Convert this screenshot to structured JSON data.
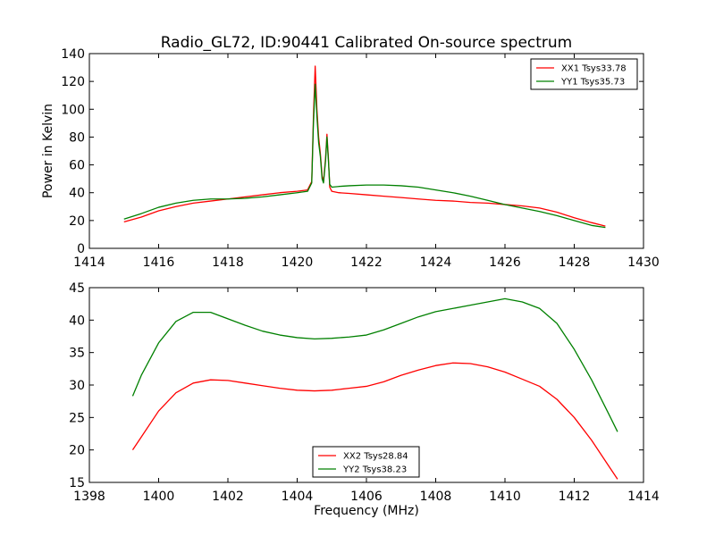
{
  "title": "Radio_GL72, ID:90441 Calibrated On-source spectrum",
  "colors": {
    "xx": "#ff0000",
    "yy": "#008000"
  },
  "chart_data": [
    {
      "type": "line",
      "xlabel": "",
      "ylabel": "Power in Kelvin",
      "xlim": [
        1414,
        1430
      ],
      "ylim": [
        0,
        140
      ],
      "xticks": [
        "1414",
        "1416",
        "1418",
        "1420",
        "1422",
        "1424",
        "1426",
        "1428",
        "1430"
      ],
      "yticks": [
        "0",
        "20",
        "40",
        "60",
        "80",
        "100",
        "120",
        "140"
      ],
      "grid": false,
      "legend": "upper right",
      "series": [
        {
          "name": "XX1 Tsys33.78",
          "color": "#ff0000",
          "points": [
            [
              1415.0,
              19
            ],
            [
              1415.5,
              22.5
            ],
            [
              1416.0,
              27
            ],
            [
              1416.5,
              30
            ],
            [
              1417.0,
              32.5
            ],
            [
              1417.5,
              34
            ],
            [
              1418.0,
              35.5
            ],
            [
              1418.5,
              37
            ],
            [
              1419.0,
              38.5
            ],
            [
              1419.5,
              40
            ],
            [
              1420.0,
              41
            ],
            [
              1420.3,
              42
            ],
            [
              1420.42,
              48
            ],
            [
              1420.47,
              95
            ],
            [
              1420.52,
              131
            ],
            [
              1420.57,
              100
            ],
            [
              1420.62,
              80
            ],
            [
              1420.67,
              68
            ],
            [
              1420.72,
              52
            ],
            [
              1420.76,
              48
            ],
            [
              1420.82,
              65
            ],
            [
              1420.86,
              82
            ],
            [
              1420.9,
              66
            ],
            [
              1420.94,
              44
            ],
            [
              1421.0,
              41
            ],
            [
              1421.2,
              40
            ],
            [
              1421.5,
              39.5
            ],
            [
              1422.0,
              38.5
            ],
            [
              1422.5,
              37.5
            ],
            [
              1423.0,
              36.5
            ],
            [
              1423.5,
              35.5
            ],
            [
              1424.0,
              34.5
            ],
            [
              1424.5,
              34
            ],
            [
              1425.0,
              33
            ],
            [
              1425.5,
              32.5
            ],
            [
              1426.0,
              31.5
            ],
            [
              1426.5,
              30.5
            ],
            [
              1427.0,
              29
            ],
            [
              1427.5,
              26
            ],
            [
              1428.0,
              22
            ],
            [
              1428.5,
              18.5
            ],
            [
              1428.9,
              16
            ]
          ]
        },
        {
          "name": "YY1 Tsys35.73",
          "color": "#008000",
          "points": [
            [
              1415.0,
              21
            ],
            [
              1415.5,
              25
            ],
            [
              1416.0,
              29.5
            ],
            [
              1416.5,
              32.5
            ],
            [
              1417.0,
              34.5
            ],
            [
              1417.5,
              35.5
            ],
            [
              1418.0,
              35.5
            ],
            [
              1418.5,
              36
            ],
            [
              1419.0,
              37
            ],
            [
              1419.5,
              38.5
            ],
            [
              1420.0,
              40
            ],
            [
              1420.3,
              41
            ],
            [
              1420.42,
              47
            ],
            [
              1420.47,
              90
            ],
            [
              1420.52,
              118
            ],
            [
              1420.57,
              95
            ],
            [
              1420.62,
              76
            ],
            [
              1420.67,
              66
            ],
            [
              1420.72,
              50
            ],
            [
              1420.76,
              47
            ],
            [
              1420.82,
              63
            ],
            [
              1420.86,
              80
            ],
            [
              1420.9,
              64
            ],
            [
              1420.94,
              46
            ],
            [
              1421.0,
              44
            ],
            [
              1421.2,
              44.5
            ],
            [
              1421.5,
              45
            ],
            [
              1422.0,
              45.5
            ],
            [
              1422.5,
              45.5
            ],
            [
              1423.0,
              45
            ],
            [
              1423.5,
              44
            ],
            [
              1424.0,
              42
            ],
            [
              1424.5,
              40
            ],
            [
              1425.0,
              37.5
            ],
            [
              1425.5,
              34.5
            ],
            [
              1426.0,
              31.5
            ],
            [
              1426.5,
              29
            ],
            [
              1427.0,
              26.5
            ],
            [
              1427.5,
              23.5
            ],
            [
              1428.0,
              20
            ],
            [
              1428.5,
              16.5
            ],
            [
              1428.9,
              15
            ]
          ]
        }
      ]
    },
    {
      "type": "line",
      "xlabel": "Frequency (MHz)",
      "ylabel": "",
      "xlim": [
        1398,
        1414
      ],
      "ylim": [
        15,
        45
      ],
      "xticks": [
        "1398",
        "1400",
        "1402",
        "1404",
        "1406",
        "1408",
        "1410",
        "1412",
        "1414"
      ],
      "yticks": [
        "15",
        "20",
        "25",
        "30",
        "35",
        "40",
        "45"
      ],
      "grid": false,
      "legend": "lower center",
      "series": [
        {
          "name": "XX2 Tsys28.84",
          "color": "#ff0000",
          "points": [
            [
              1399.25,
              20
            ],
            [
              1399.5,
              22
            ],
            [
              1400.0,
              26
            ],
            [
              1400.5,
              28.8
            ],
            [
              1401.0,
              30.3
            ],
            [
              1401.5,
              30.8
            ],
            [
              1402.0,
              30.7
            ],
            [
              1402.5,
              30.3
            ],
            [
              1403.0,
              29.9
            ],
            [
              1403.5,
              29.5
            ],
            [
              1404.0,
              29.2
            ],
            [
              1404.5,
              29.1
            ],
            [
              1405.0,
              29.2
            ],
            [
              1405.5,
              29.5
            ],
            [
              1406.0,
              29.8
            ],
            [
              1406.5,
              30.5
            ],
            [
              1407.0,
              31.5
            ],
            [
              1407.5,
              32.3
            ],
            [
              1408.0,
              33
            ],
            [
              1408.5,
              33.4
            ],
            [
              1409.0,
              33.3
            ],
            [
              1409.5,
              32.8
            ],
            [
              1410.0,
              32
            ],
            [
              1410.5,
              30.9
            ],
            [
              1411.0,
              29.8
            ],
            [
              1411.5,
              27.8
            ],
            [
              1412.0,
              25
            ],
            [
              1412.5,
              21.5
            ],
            [
              1413.0,
              17.5
            ],
            [
              1413.25,
              15.5
            ]
          ]
        },
        {
          "name": "YY2 Tsys38.23",
          "color": "#008000",
          "points": [
            [
              1399.25,
              28.3
            ],
            [
              1399.5,
              31.5
            ],
            [
              1400.0,
              36.5
            ],
            [
              1400.5,
              39.8
            ],
            [
              1401.0,
              41.2
            ],
            [
              1401.5,
              41.2
            ],
            [
              1402.0,
              40.2
            ],
            [
              1402.5,
              39.2
            ],
            [
              1403.0,
              38.3
            ],
            [
              1403.5,
              37.7
            ],
            [
              1404.0,
              37.3
            ],
            [
              1404.5,
              37.1
            ],
            [
              1405.0,
              37.2
            ],
            [
              1405.5,
              37.4
            ],
            [
              1406.0,
              37.7
            ],
            [
              1406.5,
              38.5
            ],
            [
              1407.0,
              39.5
            ],
            [
              1407.5,
              40.5
            ],
            [
              1408.0,
              41.3
            ],
            [
              1408.5,
              41.8
            ],
            [
              1409.0,
              42.3
            ],
            [
              1409.5,
              42.8
            ],
            [
              1410.0,
              43.3
            ],
            [
              1410.5,
              42.8
            ],
            [
              1411.0,
              41.8
            ],
            [
              1411.5,
              39.5
            ],
            [
              1412.0,
              35.5
            ],
            [
              1412.5,
              30.8
            ],
            [
              1413.0,
              25.5
            ],
            [
              1413.25,
              22.8
            ]
          ]
        }
      ]
    }
  ]
}
